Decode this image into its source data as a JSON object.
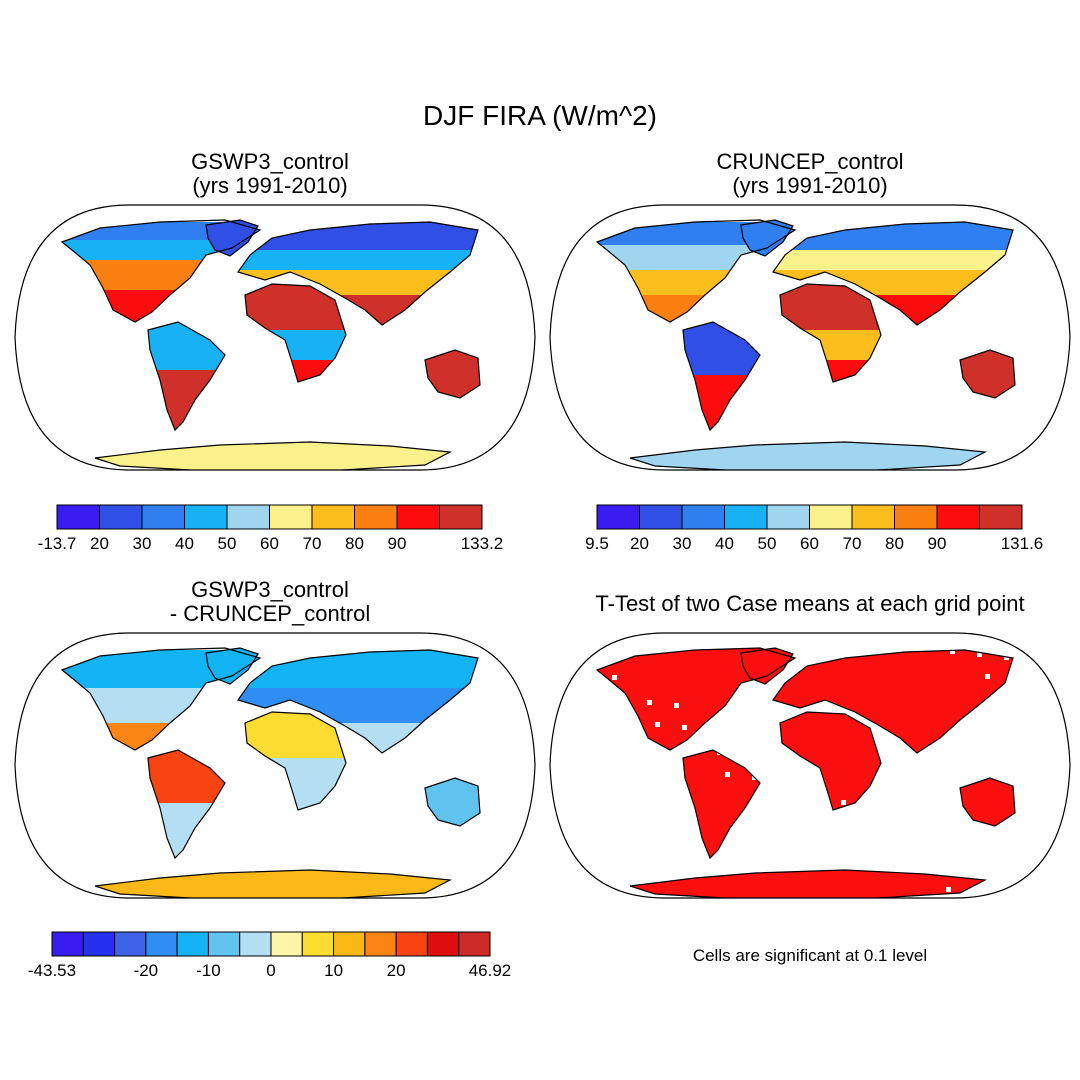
{
  "figure": {
    "title": "DJF FIRA (W/m^2)"
  },
  "colors": {
    "abs": [
      "#3a1cf2",
      "#2f4fe6",
      "#2f7ff0",
      "#17b2f5",
      "#9fd5ee",
      "#fbf18a",
      "#fbbe1c",
      "#fb8012",
      "#fc0c0c",
      "#d0302a"
    ],
    "diff": [
      "#3a1cf2",
      "#2530ee",
      "#3f63e8",
      "#2e8ef3",
      "#13b4f6",
      "#60c3ef",
      "#b4dff2",
      "#fdf6a8",
      "#fddc32",
      "#fbb817",
      "#fa8514",
      "#f84410",
      "#df0e0e",
      "#cc2b27"
    ],
    "ttest": "#fb0f0f",
    "coast": "#000000"
  },
  "panels": [
    {
      "id": "gswp3",
      "title_line1": "GSWP3_control",
      "title_line2": "(yrs 1991-2010)"
    },
    {
      "id": "cruncep",
      "title_line1": "CRUNCEP_control",
      "title_line2": "(yrs 1991-2010)"
    },
    {
      "id": "diff",
      "title_line1": "GSWP3_control",
      "title_line2": "- CRUNCEP_control"
    },
    {
      "id": "ttest",
      "title_line1": "T-Test of two Case means at each grid point",
      "title_line2": ""
    }
  ],
  "colorbars": {
    "gswp3": {
      "labels": [
        "-13.7",
        "20",
        "30",
        "40",
        "50",
        "60",
        "70",
        "80",
        "90",
        "133.2"
      ]
    },
    "cruncep": {
      "labels": [
        "9.5",
        "20",
        "30",
        "40",
        "50",
        "60",
        "70",
        "80",
        "90",
        "131.6"
      ]
    },
    "diff": {
      "labels": [
        "-43.53",
        "-20",
        "-10",
        "0",
        "10",
        "20",
        "46.92"
      ]
    }
  },
  "footnote": "Cells are significant at 0.1 level"
}
